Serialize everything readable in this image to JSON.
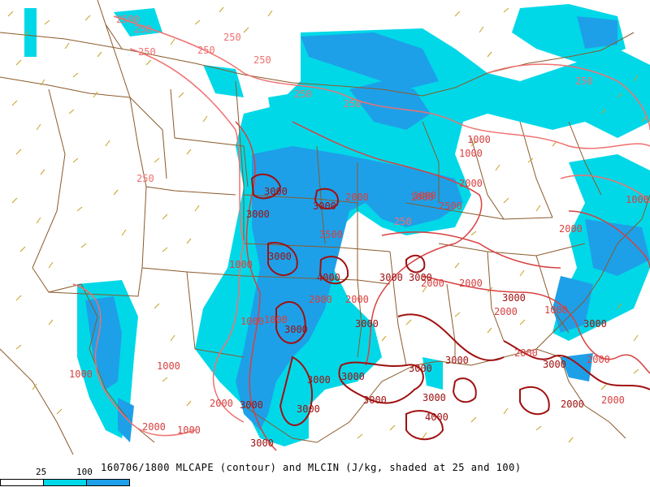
{
  "caption": "160706/1800 MLCAPE (contour) and MLCIN (J/kg, shaded at 25 and 100)",
  "legend": {
    "ticks": [
      "25",
      "100"
    ],
    "colors": {
      "none": "#ffffff",
      "low": "#00d8e8",
      "high": "#1ea0e8"
    }
  },
  "colors": {
    "boundaries": "#8b5a2b",
    "barbs": "#c8a020",
    "cape_light": "#f07070",
    "cape_mid": "#d84040",
    "cape_dark": "#a01010",
    "label": "#b02020"
  },
  "contour_labels": [
    "2500",
    "250",
    "250",
    "250",
    "250",
    "250",
    "250",
    "250",
    "250",
    "250",
    "1000",
    "1000",
    "1000",
    "1000",
    "1000",
    "1000",
    "1000",
    "1000",
    "1000",
    "1000",
    "2000",
    "2000",
    "2000",
    "2000",
    "2000",
    "2000",
    "2000",
    "2000",
    "2000",
    "2000",
    "2000",
    "3000",
    "3000",
    "3000",
    "3000",
    "3000",
    "3000",
    "3000",
    "3000",
    "3000",
    "3000",
    "3000",
    "3000",
    "3000",
    "3000",
    "3000",
    "3000",
    "3000",
    "3000",
    "3000",
    "4000",
    "4000",
    "3500",
    "250",
    "2500",
    "2000",
    "2000",
    "1000",
    "1000",
    "2000",
    "3000"
  ]
}
